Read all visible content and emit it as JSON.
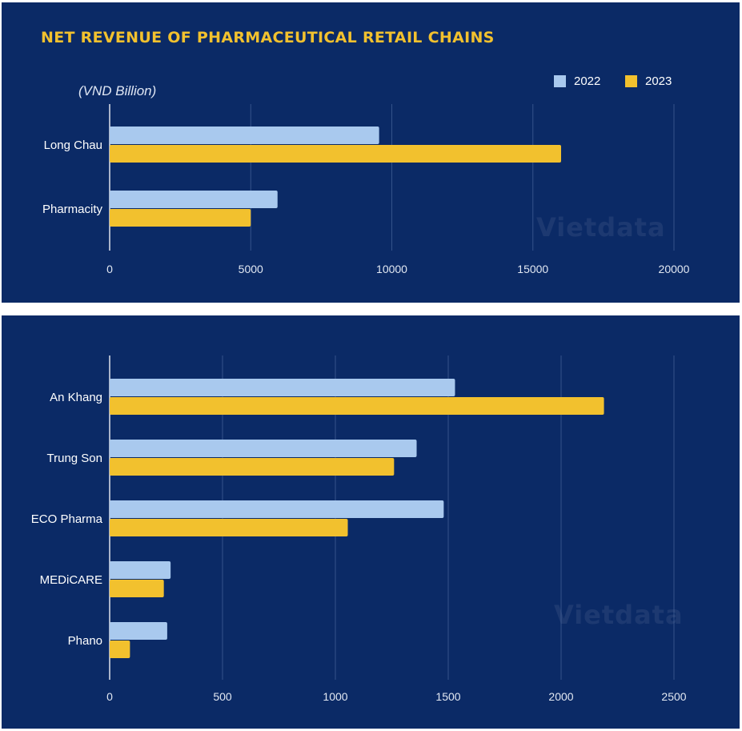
{
  "title": "NET REVENUE OF PHARMACEUTICAL RETAIL CHAINS",
  "unit_label": "(VND Billion)",
  "watermark": "Vietdata",
  "legend": [
    {
      "label": "2022",
      "color": "#a9c9ee"
    },
    {
      "label": "2023",
      "color": "#f2c12e"
    }
  ],
  "chart_data": [
    {
      "type": "bar",
      "orientation": "horizontal",
      "categories": [
        "Long Chau",
        "Pharmacity"
      ],
      "series": [
        {
          "name": "2022",
          "values": [
            9550,
            5950
          ]
        },
        {
          "name": "2023",
          "values": [
            16000,
            5000
          ]
        }
      ],
      "xlim": [
        0,
        20000
      ],
      "xticks": [
        0,
        5000,
        10000,
        15000,
        20000
      ],
      "ylabel": "(VND Billion)",
      "grid": true,
      "legend_position": "top-right"
    },
    {
      "type": "bar",
      "orientation": "horizontal",
      "categories": [
        "An Khang",
        "Trung Son",
        "ECO Pharma",
        "MEDiCARE",
        "Phano"
      ],
      "series": [
        {
          "name": "2022",
          "values": [
            1530,
            1360,
            1480,
            270,
            255
          ]
        },
        {
          "name": "2023",
          "values": [
            2190,
            1260,
            1055,
            240,
            90
          ]
        }
      ],
      "xlim": [
        0,
        2500
      ],
      "xticks": [
        0,
        500,
        1000,
        1500,
        2000,
        2500
      ],
      "grid": true
    }
  ]
}
